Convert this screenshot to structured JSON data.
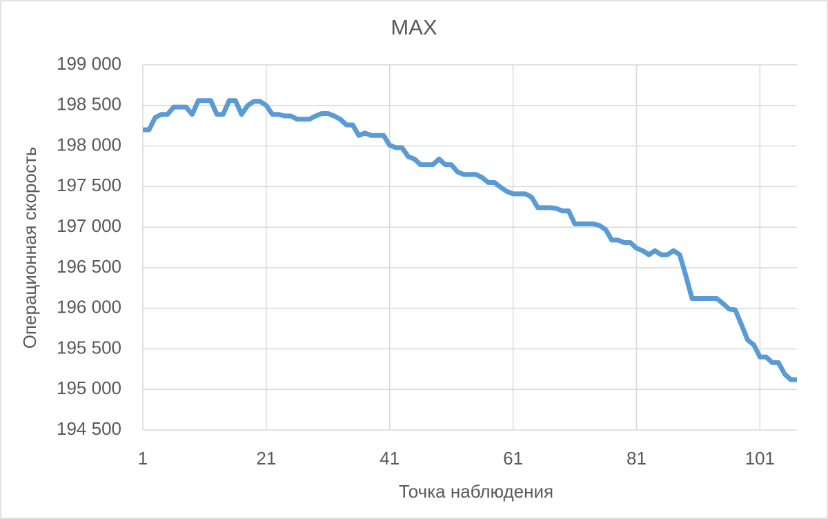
{
  "chart_data": {
    "type": "line",
    "title": "MAX",
    "x_label": "Точка наблюдения",
    "y_label": "Операционная скорость",
    "x": [
      1,
      2,
      3,
      4,
      5,
      6,
      7,
      8,
      9,
      10,
      11,
      12,
      13,
      14,
      15,
      16,
      17,
      18,
      19,
      20,
      21,
      22,
      23,
      24,
      25,
      26,
      27,
      28,
      29,
      30,
      31,
      32,
      33,
      34,
      35,
      36,
      37,
      38,
      39,
      40,
      41,
      42,
      43,
      44,
      45,
      46,
      47,
      48,
      49,
      50,
      51,
      52,
      53,
      54,
      55,
      56,
      57,
      58,
      59,
      60,
      61,
      62,
      63,
      64,
      65,
      66,
      67,
      68,
      69,
      70,
      71,
      72,
      73,
      74,
      75,
      76,
      77,
      78,
      79,
      80,
      81,
      82,
      83,
      84,
      85,
      86,
      87,
      88,
      89,
      90,
      91,
      92,
      93,
      94,
      95,
      96,
      97,
      98,
      99,
      100,
      101,
      102,
      103,
      104,
      105,
      106,
      107
    ],
    "series": [
      {
        "name": "MAX",
        "color": "#5b9bd5",
        "values": [
          198200,
          198200,
          198350,
          198390,
          198390,
          198480,
          198480,
          198480,
          198390,
          198560,
          198560,
          198560,
          198390,
          198390,
          198560,
          198560,
          198390,
          198500,
          198550,
          198550,
          198500,
          198390,
          198390,
          198370,
          198370,
          198330,
          198330,
          198330,
          198370,
          198400,
          198400,
          198370,
          198330,
          198260,
          198260,
          198130,
          198160,
          198130,
          198130,
          198130,
          198010,
          197980,
          197980,
          197870,
          197840,
          197770,
          197770,
          197770,
          197840,
          197770,
          197770,
          197680,
          197650,
          197650,
          197650,
          197610,
          197550,
          197550,
          197490,
          197440,
          197410,
          197410,
          197410,
          197370,
          197240,
          197240,
          197240,
          197230,
          197200,
          197200,
          197040,
          197040,
          197040,
          197040,
          197020,
          196970,
          196840,
          196840,
          196810,
          196810,
          196740,
          196710,
          196660,
          196710,
          196660,
          196660,
          196710,
          196660,
          196400,
          196120,
          196120,
          196120,
          196120,
          196120,
          196060,
          195990,
          195980,
          195800,
          195610,
          195550,
          195400,
          195400,
          195330,
          195330,
          195190,
          195120,
          195120
        ]
      }
    ],
    "xlim": [
      1,
      107
    ],
    "xticks": [
      1,
      21,
      41,
      61,
      81,
      101
    ],
    "ylim": [
      194500,
      199000
    ],
    "yticks": [
      {
        "value": 194500,
        "label": "194 500"
      },
      {
        "value": 195000,
        "label": "195 000"
      },
      {
        "value": 195500,
        "label": "195 500"
      },
      {
        "value": 196000,
        "label": "196 000"
      },
      {
        "value": 196500,
        "label": "196 500"
      },
      {
        "value": 197000,
        "label": "197 000"
      },
      {
        "value": 197500,
        "label": "197 500"
      },
      {
        "value": 198000,
        "label": "198 000"
      },
      {
        "value": 198500,
        "label": "198 500"
      },
      {
        "value": 199000,
        "label": "199 000"
      }
    ],
    "grid": true
  }
}
